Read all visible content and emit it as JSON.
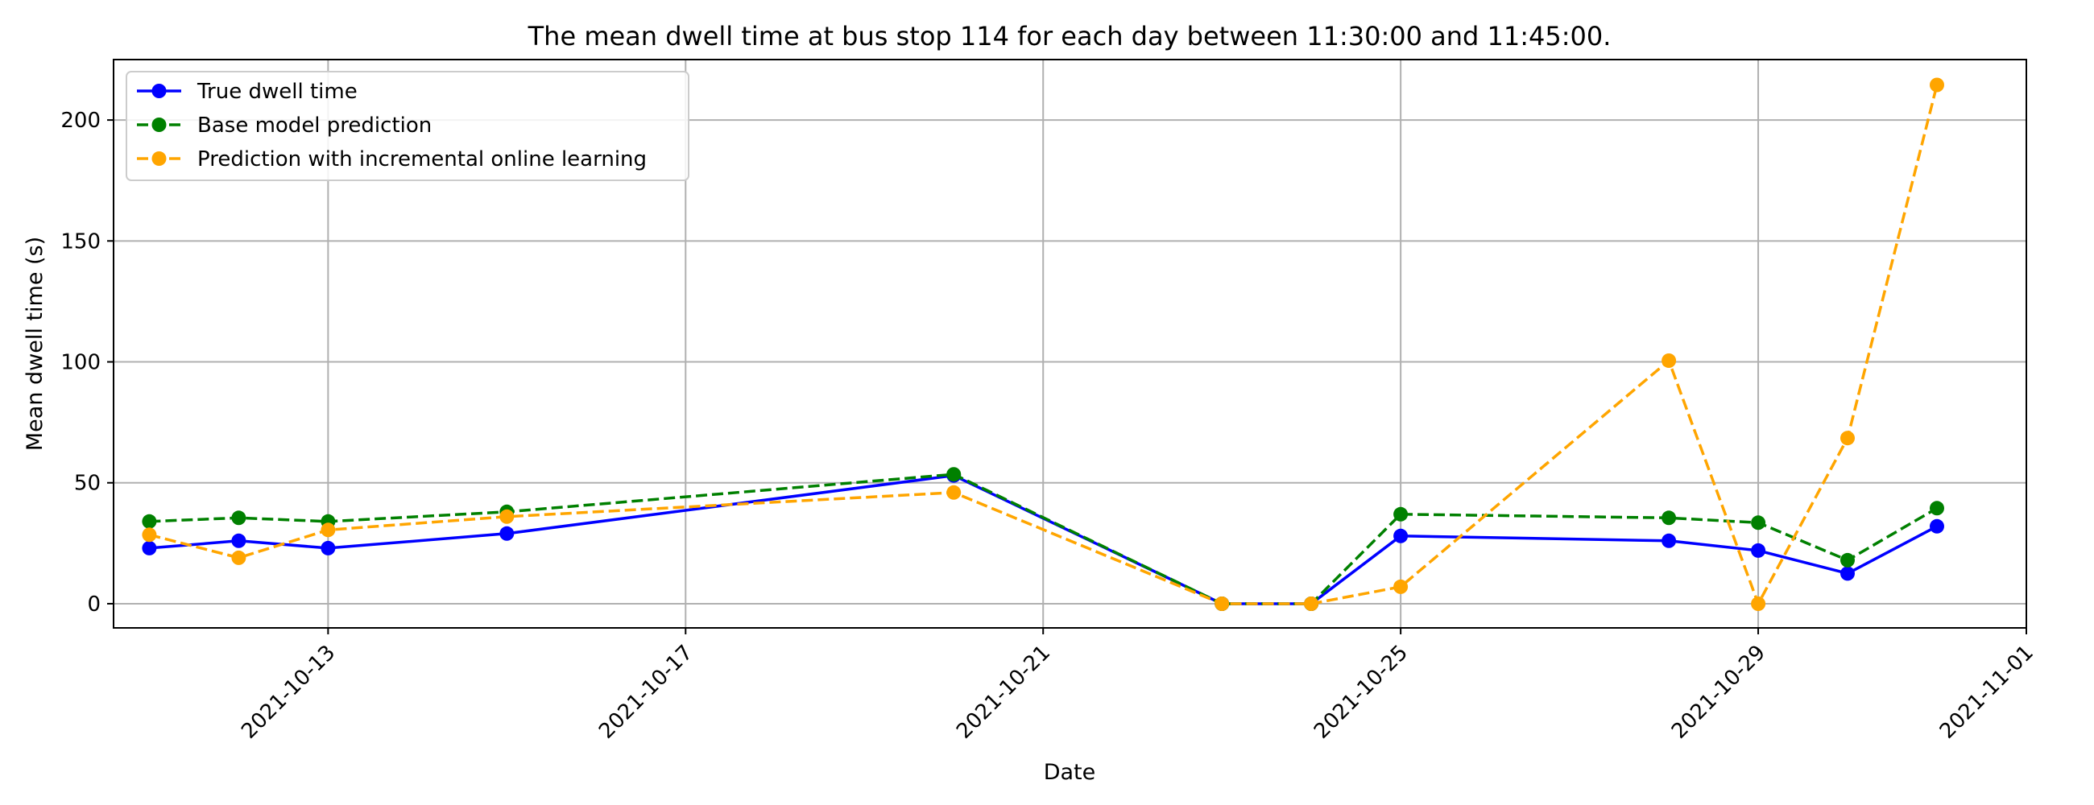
{
  "chart_data": {
    "type": "line",
    "title": "The mean dwell time at bus stop 114 for each day between 11:30:00 and 11:45:00.",
    "xlabel": "Date",
    "ylabel": "Mean dwell time (s)",
    "x_type": "date",
    "xlim": [
      "2021-10-10",
      "2021-11-01"
    ],
    "ylim": [
      -10,
      225
    ],
    "xticks": [
      "2021-10-13",
      "2021-10-17",
      "2021-10-21",
      "2021-10-25",
      "2021-10-29",
      "2021-11-01"
    ],
    "yticks": [
      0,
      50,
      100,
      150,
      200
    ],
    "grid": true,
    "legend_position": "top-left",
    "series": [
      {
        "name": "True dwell time",
        "color": "#0000ff",
        "linestyle": "solid",
        "marker": "circle",
        "points": [
          {
            "x": "2021-10-11",
            "y": 23
          },
          {
            "x": "2021-10-12",
            "y": 26
          },
          {
            "x": "2021-10-13",
            "y": 23
          },
          {
            "x": "2021-10-15",
            "y": 29
          },
          {
            "x": "2021-10-20",
            "y": 53
          },
          {
            "x": "2021-10-23",
            "y": 0
          },
          {
            "x": "2021-10-24",
            "y": 0
          },
          {
            "x": "2021-10-25",
            "y": 28
          },
          {
            "x": "2021-10-28",
            "y": 26
          },
          {
            "x": "2021-10-29",
            "y": 22
          },
          {
            "x": "2021-10-30",
            "y": 12.5
          },
          {
            "x": "2021-10-31",
            "y": 32
          }
        ]
      },
      {
        "name": "Base model prediction",
        "color": "#008000",
        "linestyle": "dashed",
        "marker": "circle",
        "points": [
          {
            "x": "2021-10-11",
            "y": 34
          },
          {
            "x": "2021-10-12",
            "y": 35.5
          },
          {
            "x": "2021-10-13",
            "y": 34
          },
          {
            "x": "2021-10-15",
            "y": 38
          },
          {
            "x": "2021-10-20",
            "y": 53.5
          },
          {
            "x": "2021-10-23",
            "y": 0
          },
          {
            "x": "2021-10-24",
            "y": 0
          },
          {
            "x": "2021-10-25",
            "y": 37
          },
          {
            "x": "2021-10-28",
            "y": 35.5
          },
          {
            "x": "2021-10-29",
            "y": 33.5
          },
          {
            "x": "2021-10-30",
            "y": 18
          },
          {
            "x": "2021-10-31",
            "y": 39.5
          }
        ]
      },
      {
        "name": "Prediction with incremental online learning",
        "color": "#ffa500",
        "linestyle": "dashed",
        "marker": "circle",
        "points": [
          {
            "x": "2021-10-11",
            "y": 28.5
          },
          {
            "x": "2021-10-12",
            "y": 19
          },
          {
            "x": "2021-10-13",
            "y": 30.5
          },
          {
            "x": "2021-10-15",
            "y": 36
          },
          {
            "x": "2021-10-20",
            "y": 46
          },
          {
            "x": "2021-10-23",
            "y": 0
          },
          {
            "x": "2021-10-24",
            "y": 0
          },
          {
            "x": "2021-10-25",
            "y": 7
          },
          {
            "x": "2021-10-28",
            "y": 100.5
          },
          {
            "x": "2021-10-29",
            "y": 0
          },
          {
            "x": "2021-10-30",
            "y": 68.5
          },
          {
            "x": "2021-10-31",
            "y": 214.5
          }
        ]
      }
    ]
  }
}
